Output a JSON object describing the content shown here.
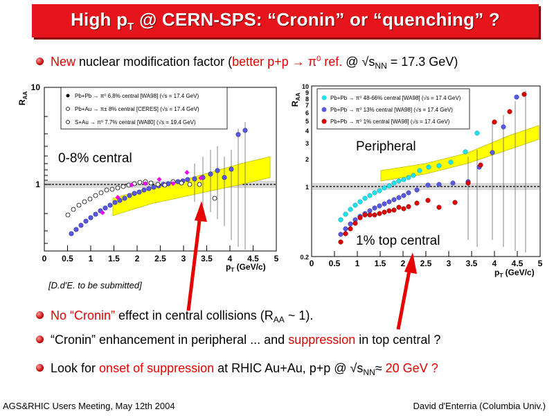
{
  "title": {
    "pre": "High p",
    "sub": "T",
    "post": " @ CERN-SPS: “Cronin” or “quenching” ?"
  },
  "bullet1": {
    "new_word": "New",
    "text_a": " nuclear modification factor (",
    "red_ref": "better p+p → π",
    "red_sup": "0",
    "red_tail": " ref.",
    "text_b": " @ √s",
    "text_sub": "NN",
    "text_c": " = 17.3 GeV)"
  },
  "plot_left": {
    "ylabel": "R",
    "ylabel_sub": "AA",
    "y_tick_top": "10",
    "y_tick_one": "1",
    "x_ticks": [
      "0",
      "0.5",
      "1",
      "1.5",
      "2",
      "2.5",
      "3",
      "3.5",
      "4",
      "4.5",
      "5"
    ],
    "xlabel": "p",
    "xlabel_sub": "T",
    "xlabel_unit": " (GeV/c)",
    "legend": [
      "Pb+Pb → π⁰ 6.8% central [WA98] (√s = 17.4 GeV)",
      "Pb+Au → π± 8% central [CERES] (√s = 17.4 GeV)",
      "S+Au → π⁰ 7.7% central [WA80] (√s = 19.4 GeV)"
    ],
    "label": "0-8% central"
  },
  "plot_right": {
    "ylabel": "R",
    "ylabel_sub": "AA",
    "y_ticks": [
      "10",
      "9",
      "8",
      "7",
      "6",
      "5",
      "4",
      "3",
      "2",
      "1",
      "0.2"
    ],
    "x_ticks": [
      "0",
      "0.5",
      "1",
      "1.5",
      "2",
      "2.5",
      "3",
      "3.5",
      "4",
      "4.5",
      "5"
    ],
    "xlabel": "p",
    "xlabel_sub": "T",
    "xlabel_unit": " (GeV/c)",
    "legend": [
      "Pb+Pb → π⁰ 48-66% central [WA98] (√s = 17.4 GeV)",
      "Pb+Pb → π⁰ 13% central [WA98] (√s = 17.4 GeV)",
      "Pb+Pb → π⁰ 1% central [WA98] (√s = 17.4 GeV)"
    ],
    "label_top": "Peripheral",
    "label_bottom": "1% top central"
  },
  "citation": "[D.d'E. to be submitted]",
  "bullet2": {
    "red": "No “Cronin”",
    "text_a": " effect in central collisions (R",
    "sub": "AA",
    "text_b": " ~ 1)."
  },
  "bullet3": {
    "text_a": "“Cronin” enhancement in peripheral ... and ",
    "red": "suppression",
    "text_b": " in top central ?"
  },
  "bullet4": {
    "text_a": "Look for ",
    "red": "onset of suppression",
    "text_b": " at RHIC Au+Au, p+p @ √s",
    "sub": "NN",
    "approx": "≈",
    "red_tail": "  20 GeV ?"
  },
  "footer": {
    "left": "AGS&RHIC Users Meeting, May 12th 2004",
    "right": "David d'Enterria (Columbia Univ.)"
  },
  "colors": {
    "title_bg": "#e6141b",
    "accent_red": "#e60000",
    "band": "#ffff00",
    "blue_points": "#5555dd",
    "cyan_points": "#22e0ee",
    "red_points": "#dd0000",
    "magenta_points": "#ee00ee"
  }
}
